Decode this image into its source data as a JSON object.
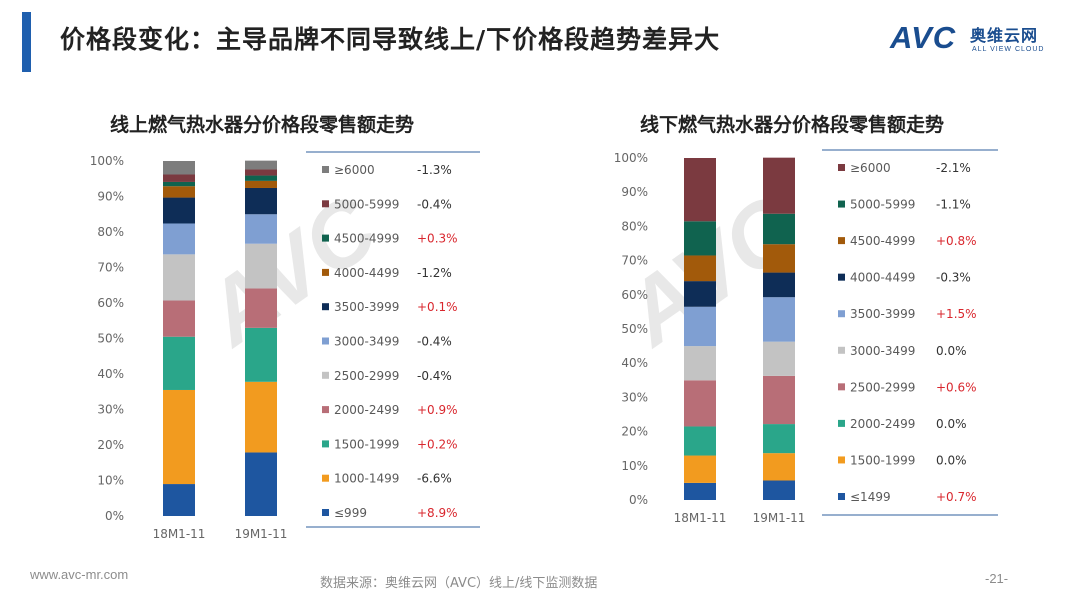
{
  "header": {
    "title": "价格段变化：主导品牌不同导致线上/下价格段趋势差异大",
    "accent_color": "#1f5fae"
  },
  "logo": {
    "text": "AVC",
    "cn": "奥维云网",
    "en": "ALL VIEW CLOUD"
  },
  "footer": {
    "url": "www.avc-mr.com",
    "source": "数据来源：奥维云网（AVC）线上/线下监测数据",
    "page": "-21-"
  },
  "chart_data": [
    {
      "type": "bar",
      "stacked": true,
      "title": "线上燃气热水器分价格段零售额走势",
      "categories": [
        "18M1-11",
        "19M1-11"
      ],
      "ylim": [
        0,
        100
      ],
      "yticks": [
        "0%",
        "10%",
        "20%",
        "30%",
        "40%",
        "50%",
        "60%",
        "70%",
        "80%",
        "90%",
        "100%"
      ],
      "series": [
        {
          "name": "≤999",
          "values": [
            9.0,
            17.9
          ],
          "delta": "+8.9%",
          "color": "#1e56a0"
        },
        {
          "name": "1000-1499",
          "values": [
            26.5,
            19.9
          ],
          "delta": "-6.6%",
          "color": "#f29b1f"
        },
        {
          "name": "1500-1999",
          "values": [
            15.0,
            15.2
          ],
          "delta": "+0.2%",
          "color": "#2aa68a"
        },
        {
          "name": "2000-2499",
          "values": [
            10.2,
            11.1
          ],
          "delta": "+0.9%",
          "color": "#b86e77"
        },
        {
          "name": "2500-2999",
          "values": [
            13.0,
            12.6
          ],
          "delta": "-0.4%",
          "color": "#c3c3c3"
        },
        {
          "name": "3000-3499",
          "values": [
            8.7,
            8.3
          ],
          "delta": "-0.4%",
          "color": "#7f9fd2"
        },
        {
          "name": "3500-3999",
          "values": [
            7.3,
            7.4
          ],
          "delta": "+0.1%",
          "color": "#0e2d57"
        },
        {
          "name": "4000-4499",
          "values": [
            3.2,
            2.0
          ],
          "delta": "-1.2%",
          "color": "#a25a0b"
        },
        {
          "name": "4500-4999",
          "values": [
            1.2,
            1.5
          ],
          "delta": "+0.3%",
          "color": "#10634f"
        },
        {
          "name": "5000-5999",
          "values": [
            2.1,
            1.7
          ],
          "delta": "-0.4%",
          "color": "#7b3a40"
        },
        {
          "name": "≥6000",
          "values": [
            3.8,
            2.5
          ],
          "delta": "-1.3%",
          "color": "#7d7d7d"
        }
      ]
    },
    {
      "type": "bar",
      "stacked": true,
      "title": "线下燃气热水器分价格段零售额走势",
      "categories": [
        "18M1-11",
        "19M1-11"
      ],
      "ylim": [
        0,
        100
      ],
      "yticks": [
        "0%",
        "10%",
        "20%",
        "30%",
        "40%",
        "50%",
        "60%",
        "70%",
        "80%",
        "90%",
        "100%"
      ],
      "series": [
        {
          "name": "≤1499",
          "values": [
            5.0,
            5.7
          ],
          "delta": "+0.7%",
          "color": "#1e56a0"
        },
        {
          "name": "1500-1999",
          "values": [
            8.0,
            8.0
          ],
          "delta": "0.0%",
          "color": "#f29b1f"
        },
        {
          "name": "2000-2499",
          "values": [
            8.5,
            8.5
          ],
          "delta": "0.0%",
          "color": "#2aa68a"
        },
        {
          "name": "2500-2999",
          "values": [
            13.5,
            14.1
          ],
          "delta": "+0.6%",
          "color": "#b86e77"
        },
        {
          "name": "3000-3499",
          "values": [
            10.0,
            10.0
          ],
          "delta": "0.0%",
          "color": "#c3c3c3"
        },
        {
          "name": "3500-3999",
          "values": [
            11.5,
            13.0
          ],
          "delta": "+1.5%",
          "color": "#7f9fd2"
        },
        {
          "name": "4000-4499",
          "values": [
            7.5,
            7.2
          ],
          "delta": "-0.3%",
          "color": "#0e2d57"
        },
        {
          "name": "4500-4999",
          "values": [
            7.5,
            8.3
          ],
          "delta": "+0.8%",
          "color": "#a25a0b"
        },
        {
          "name": "5000-5999",
          "values": [
            10.0,
            8.9
          ],
          "delta": "-1.1%",
          "color": "#10634f"
        },
        {
          "name": "≥6000",
          "values": [
            18.5,
            16.4
          ],
          "delta": "-2.1%",
          "color": "#7b3a40"
        }
      ]
    }
  ]
}
